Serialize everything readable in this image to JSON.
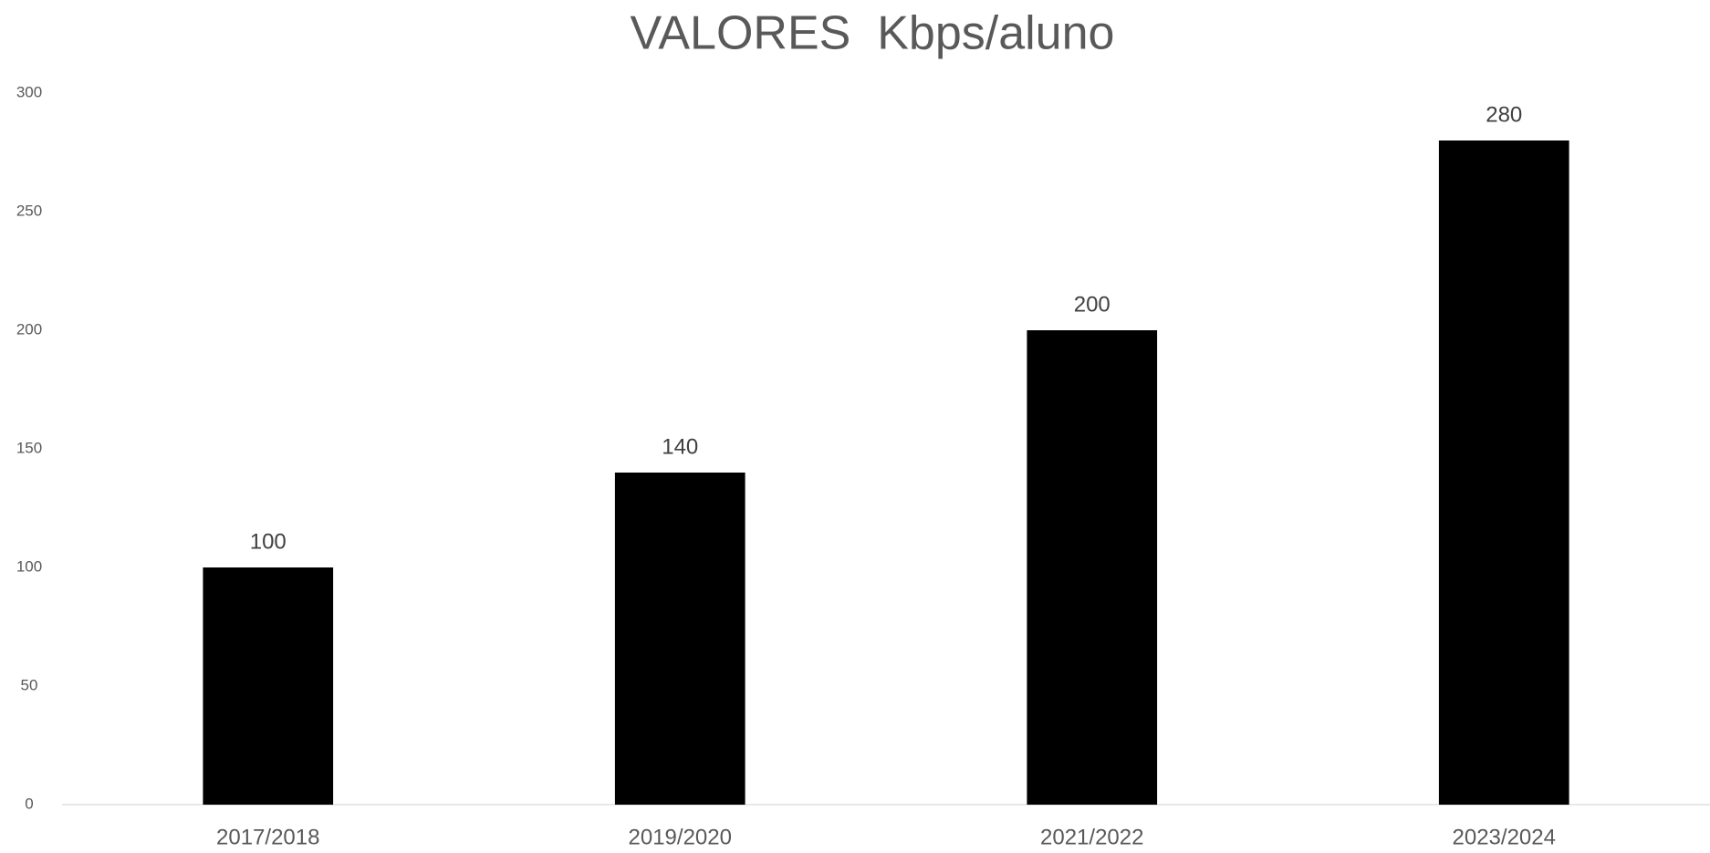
{
  "chart_data": {
    "type": "bar",
    "title": "VALORES  Kbps/aluno",
    "categories": [
      "2017/2018",
      "2019/2020",
      "2021/2022",
      "2023/2024"
    ],
    "values": [
      100,
      140,
      200,
      280
    ],
    "color": "#000000",
    "ylim": [
      0,
      300
    ],
    "yticks": [
      0,
      50,
      100,
      150,
      200,
      250,
      300
    ],
    "grid": false
  }
}
